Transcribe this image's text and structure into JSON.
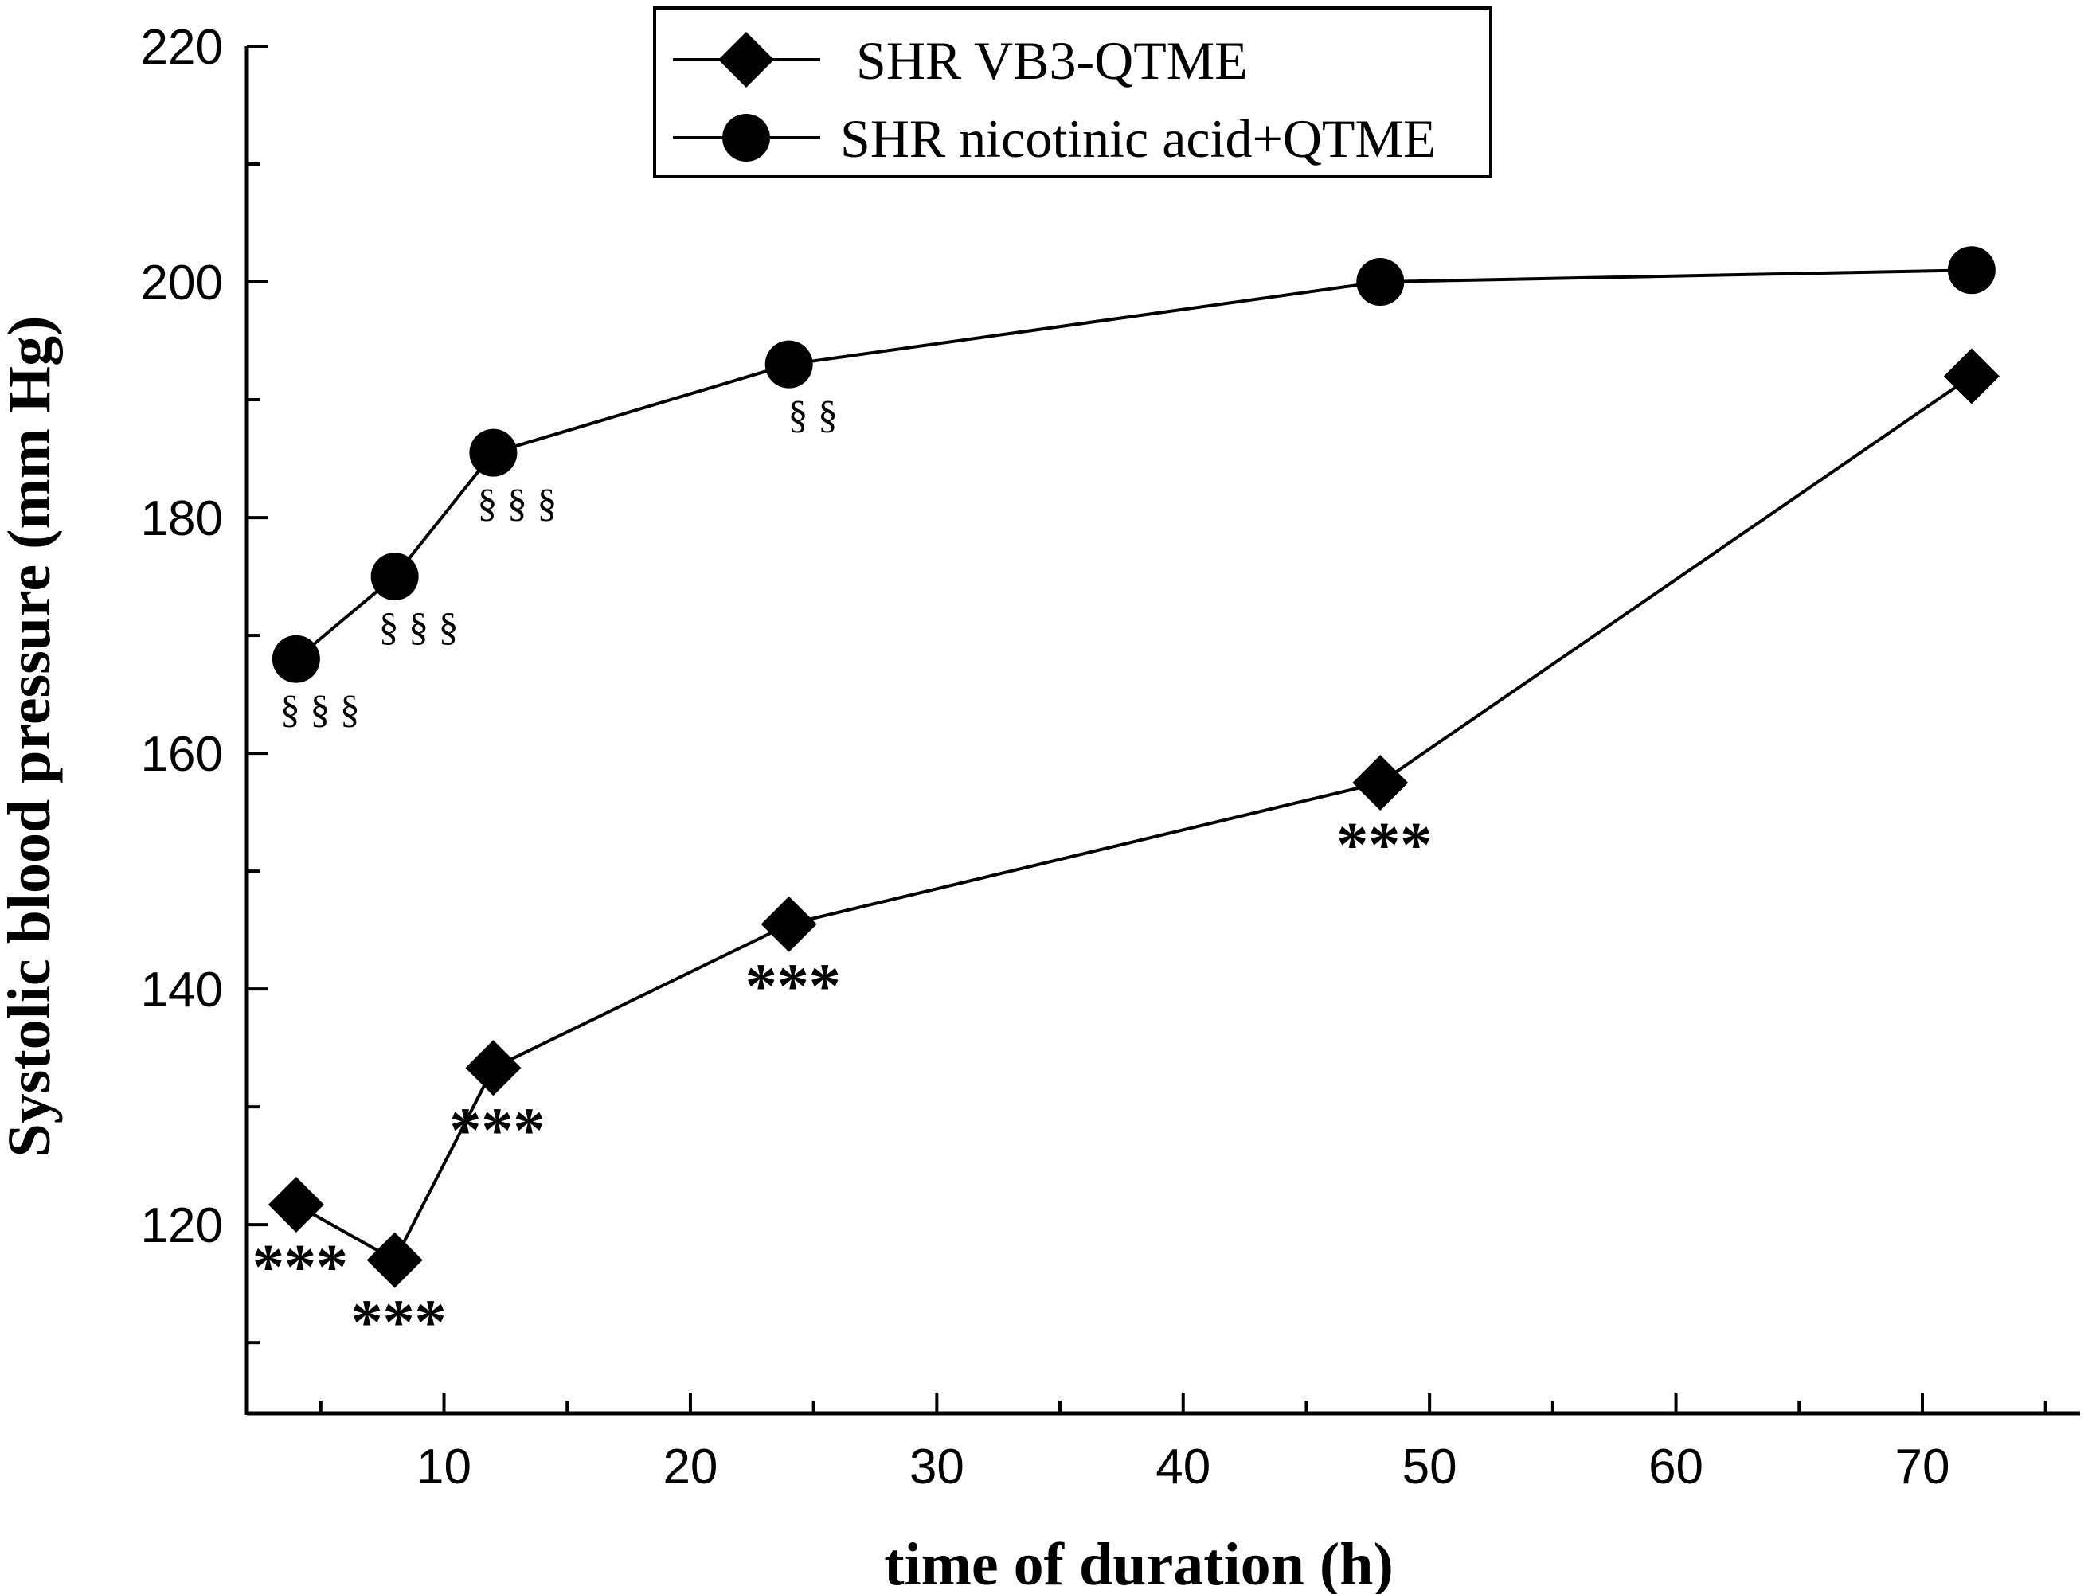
{
  "chart_data": {
    "type": "line",
    "title": "",
    "xlabel": "time of duration (h)",
    "ylabel": "Systolic blood pressure (mm Hg)",
    "xlim": [
      2,
      76.4
    ],
    "ylim": [
      104,
      220
    ],
    "xticks": [
      10,
      20,
      30,
      40,
      50,
      60,
      70
    ],
    "yticks": [
      120,
      140,
      160,
      180,
      200,
      220
    ],
    "x_minor_step": 5,
    "y_minor_step": 10,
    "legend_position": "top-center",
    "series": [
      {
        "name": "SHR VB3-QTME",
        "marker": "diamond",
        "x": [
          4,
          8,
          12,
          24,
          48,
          72
        ],
        "y": [
          121.7,
          117,
          133.3,
          145.5,
          157.5,
          192
        ],
        "annotations": [
          "***",
          "***",
          "***",
          "***",
          "***",
          ""
        ]
      },
      {
        "name": "SHR nicotinic acid+QTME",
        "marker": "circle",
        "x": [
          4,
          8,
          12,
          24,
          48,
          72
        ],
        "y": [
          168,
          175,
          185.5,
          193,
          200,
          201
        ],
        "annotations": [
          "§ § §",
          "§ § §",
          "§ § §",
          "§ §",
          "",
          ""
        ]
      }
    ]
  }
}
